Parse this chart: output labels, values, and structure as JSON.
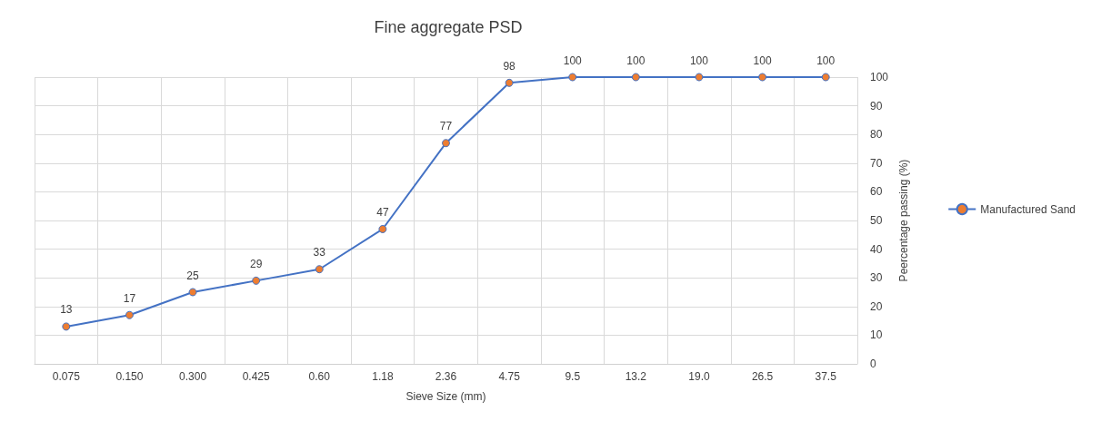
{
  "chart_data": {
    "type": "line",
    "title": "Fine aggregate PSD",
    "xlabel": "Sieve Size (mm)",
    "ylabel": "Peercentage passing (%)",
    "categories": [
      "0.075",
      "0.150",
      "0.300",
      "0.425",
      "0.60",
      "1.18",
      "2.36",
      "4.75",
      "9.5",
      "13.2",
      "19.0",
      "26.5",
      "37.5"
    ],
    "series": [
      {
        "name": "Manufactured Sand",
        "color": "#4472c4",
        "values": [
          13,
          17,
          25,
          29,
          33,
          47,
          77,
          98,
          100,
          100,
          100,
          100,
          100
        ]
      }
    ],
    "ylim": [
      0,
      100
    ],
    "yticks": [
      0,
      10,
      20,
      30,
      40,
      50,
      60,
      70,
      80,
      90,
      100
    ],
    "grid": true,
    "legend": "right",
    "marker": "circle",
    "data_labels": true
  }
}
